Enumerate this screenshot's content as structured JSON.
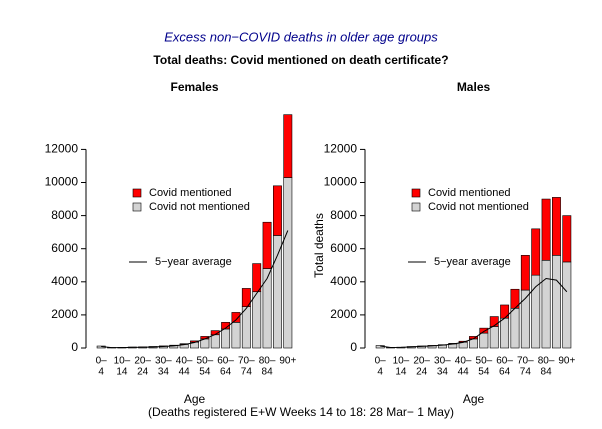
{
  "title": "Excess non−COVID deaths in older age groups",
  "subtitle": "Total deaths: Covid mentioned on death certificate?",
  "note": "(Deaths registered E+W Weeks 14 to 18: 28 Mar− 1 May)",
  "chart_data": [
    {
      "type": "bar",
      "stacked": true,
      "title": "Females",
      "xlabel": "Age",
      "categories": [
        [
          "0–",
          "4"
        ],
        null,
        [
          "10–",
          "14"
        ],
        null,
        [
          "20–",
          "24"
        ],
        null,
        [
          "30–",
          "34"
        ],
        null,
        [
          "40–",
          "44"
        ],
        null,
        [
          "50–",
          "54"
        ],
        null,
        [
          "60–",
          "64"
        ],
        null,
        [
          "70–",
          "74"
        ],
        null,
        [
          "80–",
          "84"
        ],
        null,
        [
          "90+"
        ]
      ],
      "series": [
        {
          "name": "Covid mentioned",
          "color": "#ff0000",
          "values": [
            0,
            0,
            0,
            5,
            5,
            10,
            15,
            20,
            40,
            80,
            150,
            250,
            400,
            600,
            1100,
            1700,
            2800,
            3000,
            3800
          ]
        },
        {
          "name": "Covid not mentioned",
          "color": "#d3d3d3",
          "values": [
            120,
            30,
            40,
            50,
            60,
            80,
            110,
            150,
            220,
            350,
            550,
            800,
            1150,
            1550,
            2500,
            3400,
            4800,
            6800,
            10300
          ]
        },
        {
          "name": "5−year average",
          "type": "line",
          "color": "#000000",
          "values": [
            90,
            20,
            25,
            35,
            45,
            60,
            90,
            130,
            200,
            330,
            550,
            820,
            1200,
            1700,
            2400,
            3300,
            4200,
            5600,
            7100
          ]
        }
      ],
      "ylim": [
        0,
        14200
      ],
      "yticks": [
        0,
        2000,
        4000,
        6000,
        8000,
        10000,
        12000
      ]
    },
    {
      "type": "bar",
      "stacked": true,
      "title": "Males",
      "xlabel": "Age",
      "ylabel": "Total deaths",
      "categories": [
        [
          "0–",
          "4"
        ],
        null,
        [
          "10–",
          "14"
        ],
        null,
        [
          "20–",
          "24"
        ],
        null,
        [
          "30–",
          "34"
        ],
        null,
        [
          "40–",
          "44"
        ],
        null,
        [
          "50–",
          "54"
        ],
        null,
        [
          "60–",
          "64"
        ],
        null,
        [
          "70–",
          "74"
        ],
        null,
        [
          "80–",
          "84"
        ],
        null,
        [
          "90+"
        ]
      ],
      "series": [
        {
          "name": "Covid mentioned",
          "color": "#ff0000",
          "values": [
            0,
            0,
            0,
            5,
            10,
            15,
            20,
            30,
            60,
            150,
            300,
            600,
            800,
            1150,
            2100,
            2800,
            3700,
            3500,
            2800
          ]
        },
        {
          "name": "Covid not mentioned",
          "color": "#d3d3d3",
          "values": [
            150,
            40,
            50,
            80,
            110,
            140,
            180,
            250,
            350,
            550,
            900,
            1300,
            1800,
            2400,
            3500,
            4400,
            5300,
            5600,
            5200
          ]
        },
        {
          "name": "5−year average",
          "type": "line",
          "color": "#000000",
          "values": [
            120,
            30,
            40,
            70,
            100,
            130,
            170,
            240,
            340,
            560,
            1000,
            1350,
            1800,
            2400,
            3000,
            3700,
            4200,
            4100,
            3400
          ]
        }
      ],
      "ylim": [
        0,
        14200
      ],
      "yticks": [
        0,
        2000,
        4000,
        6000,
        8000,
        10000,
        12000
      ]
    }
  ]
}
